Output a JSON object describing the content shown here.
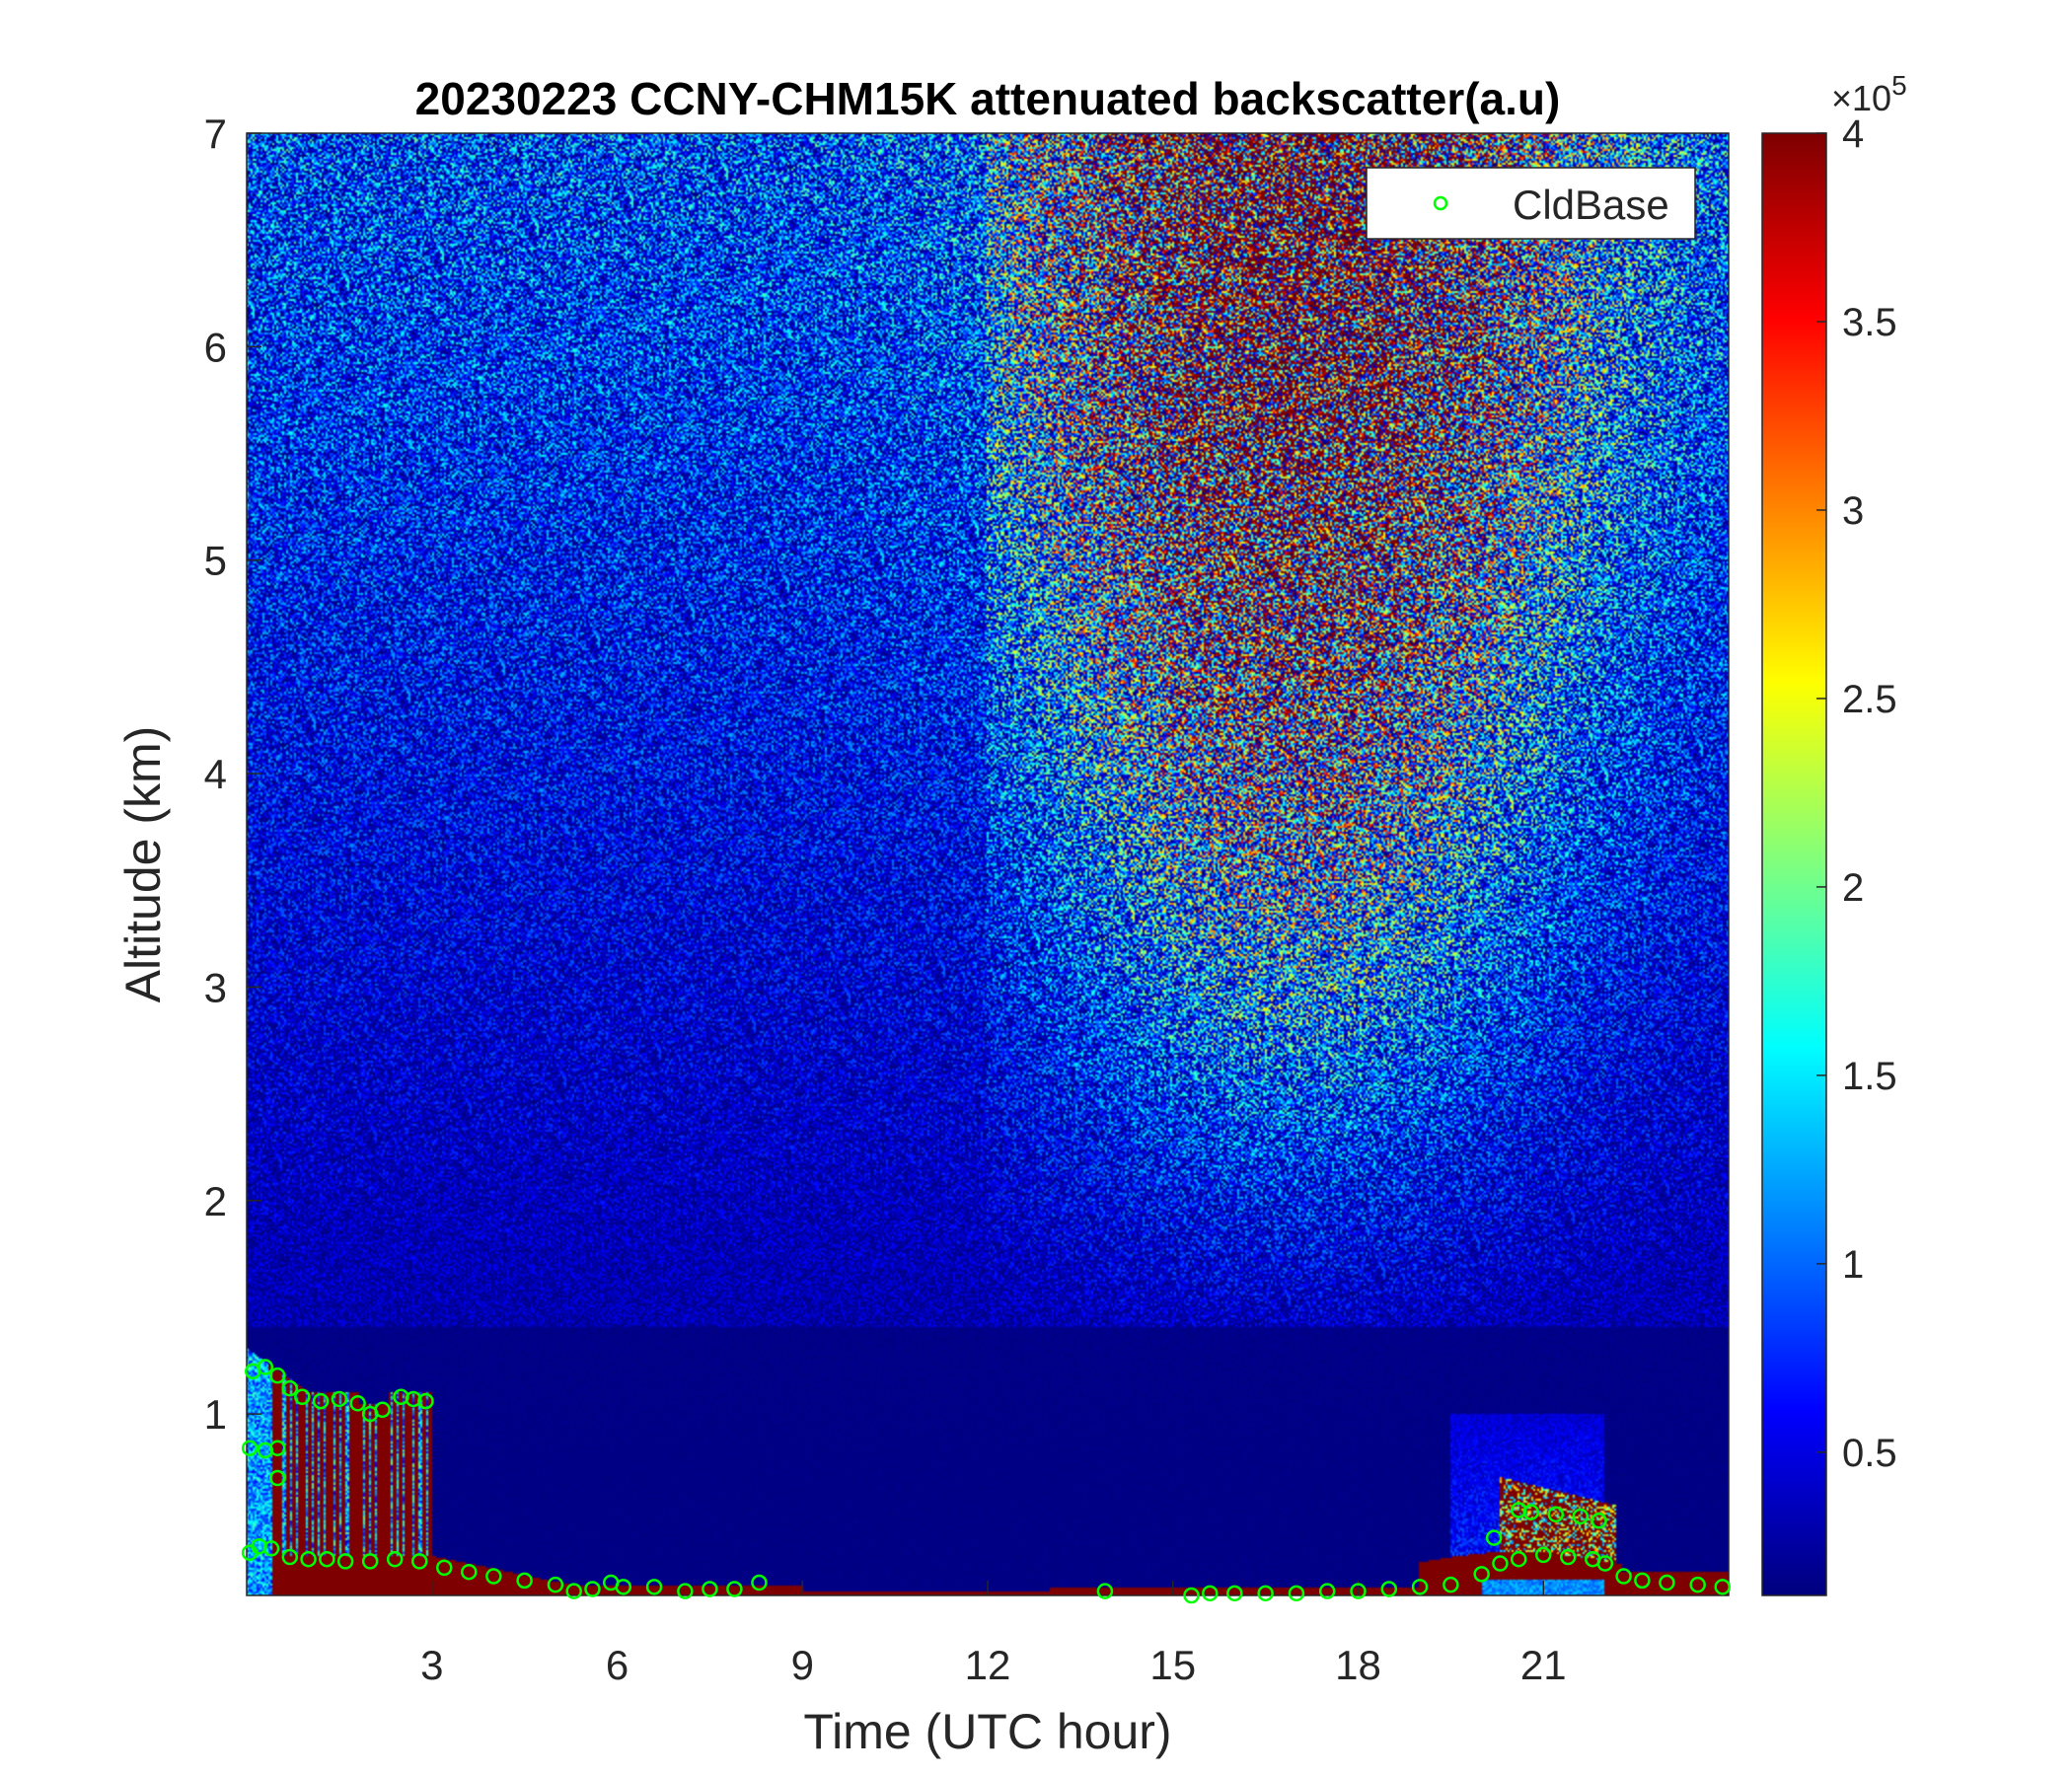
{
  "chart_data": {
    "type": "heatmap",
    "title": "20230223 CCNY-CHM15K attenuated backscatter(a.u)",
    "xlabel": "Time (UTC hour)",
    "ylabel": "Altitude (km)",
    "xlim": [
      0,
      24
    ],
    "ylim": [
      0.15,
      7
    ],
    "xticks": [
      3,
      6,
      9,
      12,
      15,
      18,
      21
    ],
    "yticks": [
      1,
      2,
      3,
      4,
      5,
      6,
      7
    ],
    "colormap": "jet",
    "colorbar": {
      "clim": [
        0.12,
        4
      ],
      "ticks": [
        0.5,
        1,
        1.5,
        2,
        2.5,
        3,
        3.5,
        4
      ],
      "exponent_label": "×10",
      "exponent": "5"
    },
    "legend": {
      "entries": [
        "CldBase"
      ],
      "placement": "top-right"
    },
    "series": [
      {
        "name": "CldBase",
        "marker": "circle",
        "color": "#00ff00",
        "points": [
          [
            0.1,
            1.2
          ],
          [
            0.3,
            1.22
          ],
          [
            0.5,
            1.18
          ],
          [
            0.7,
            1.12
          ],
          [
            0.9,
            1.08
          ],
          [
            1.2,
            1.06
          ],
          [
            1.5,
            1.07
          ],
          [
            1.8,
            1.05
          ],
          [
            2.0,
            1.0
          ],
          [
            2.2,
            1.02
          ],
          [
            2.5,
            1.08
          ],
          [
            2.7,
            1.07
          ],
          [
            2.9,
            1.06
          ],
          [
            0.05,
            0.84
          ],
          [
            0.3,
            0.83
          ],
          [
            0.5,
            0.84
          ],
          [
            0.5,
            0.7
          ],
          [
            0.05,
            0.35
          ],
          [
            0.2,
            0.38
          ],
          [
            0.4,
            0.37
          ],
          [
            0.7,
            0.33
          ],
          [
            1.0,
            0.32
          ],
          [
            1.3,
            0.32
          ],
          [
            1.6,
            0.31
          ],
          [
            2.0,
            0.31
          ],
          [
            2.4,
            0.32
          ],
          [
            2.8,
            0.31
          ],
          [
            3.2,
            0.28
          ],
          [
            3.6,
            0.26
          ],
          [
            4.0,
            0.24
          ],
          [
            4.5,
            0.22
          ],
          [
            5.0,
            0.2
          ],
          [
            5.3,
            0.17
          ],
          [
            5.6,
            0.18
          ],
          [
            5.9,
            0.21
          ],
          [
            6.1,
            0.19
          ],
          [
            6.6,
            0.19
          ],
          [
            7.1,
            0.17
          ],
          [
            7.5,
            0.18
          ],
          [
            7.9,
            0.18
          ],
          [
            8.3,
            0.21
          ],
          [
            13.9,
            0.17
          ],
          [
            15.3,
            0.15
          ],
          [
            15.6,
            0.16
          ],
          [
            16.0,
            0.16
          ],
          [
            16.5,
            0.16
          ],
          [
            17.0,
            0.16
          ],
          [
            17.5,
            0.17
          ],
          [
            18.0,
            0.17
          ],
          [
            18.5,
            0.18
          ],
          [
            19.0,
            0.19
          ],
          [
            19.5,
            0.2
          ],
          [
            20.0,
            0.25
          ],
          [
            20.3,
            0.3
          ],
          [
            20.6,
            0.32
          ],
          [
            21.0,
            0.34
          ],
          [
            21.4,
            0.33
          ],
          [
            21.8,
            0.32
          ],
          [
            22.0,
            0.3
          ],
          [
            22.3,
            0.24
          ],
          [
            22.6,
            0.22
          ],
          [
            23.0,
            0.21
          ],
          [
            23.5,
            0.2
          ],
          [
            23.9,
            0.19
          ],
          [
            20.2,
            0.42
          ],
          [
            20.6,
            0.55
          ],
          [
            20.8,
            0.54
          ],
          [
            21.2,
            0.53
          ],
          [
            21.6,
            0.52
          ],
          [
            21.9,
            0.5
          ]
        ]
      }
    ]
  }
}
